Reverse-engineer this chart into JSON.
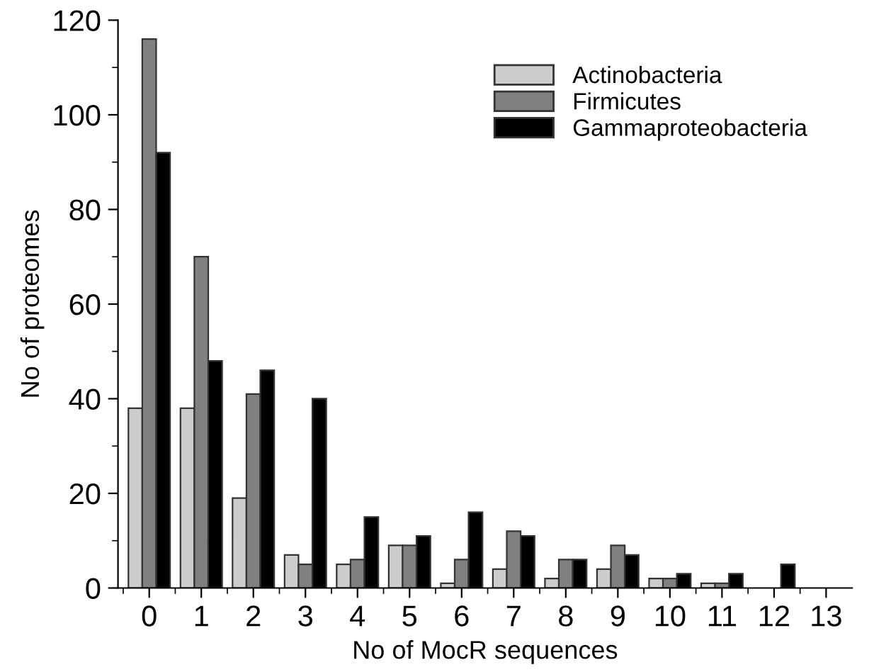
{
  "chart_data": {
    "type": "bar",
    "xlabel": "No of MocR sequences",
    "ylabel": "No of proteomes",
    "categories": [
      "0",
      "1",
      "2",
      "3",
      "4",
      "5",
      "6",
      "7",
      "8",
      "9",
      "10",
      "11",
      "12",
      "13"
    ],
    "series": [
      {
        "name": "Actinobacteria",
        "color": "#cccccc",
        "values": [
          38,
          38,
          19,
          7,
          5,
          9,
          1,
          4,
          2,
          4,
          2,
          1,
          0,
          0
        ]
      },
      {
        "name": "Firmicutes",
        "color": "#808080",
        "values": [
          116,
          70,
          41,
          5,
          6,
          9,
          6,
          12,
          6,
          9,
          2,
          1,
          0,
          0
        ]
      },
      {
        "name": "Gammaproteobacteria",
        "color": "#000000",
        "values": [
          92,
          48,
          46,
          40,
          15,
          11,
          16,
          11,
          6,
          7,
          3,
          3,
          5,
          0
        ]
      }
    ],
    "ylim": [
      0,
      120
    ],
    "yticks": [
      0,
      20,
      40,
      60,
      80,
      100,
      120
    ],
    "grid": false,
    "legend": "top right"
  }
}
